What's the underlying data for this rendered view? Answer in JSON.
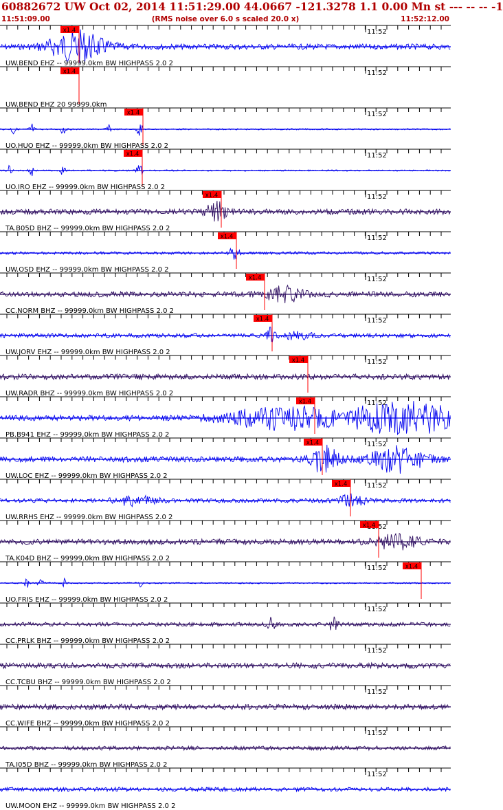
{
  "header": {
    "title": "60882672 UW Oct 02, 2014 11:51:29.00   44.0667 -121.3278  1.1 0.00 Mn st --- -- --  -1",
    "start_time": "11:51:09.00",
    "note": "(RMS noise over 6.0 s scaled 20.0 x)",
    "end_time": "11:52:12.00"
  },
  "colors": {
    "header_text": "#b00000",
    "trace_blue": "#0000ee",
    "trace_purple": "#2b0a5e",
    "pick_flag": "#ff0000",
    "axis": "#000000"
  },
  "minute_label": "11:52",
  "traces": [
    {
      "label": "UW.BEND EHZ -- 99999.0km BW  HIGHPASS  2.0  2",
      "pick": "x1.4",
      "color": "blue",
      "amp": 4,
      "events": [
        {
          "t": 0.17,
          "a": 22,
          "w": 0.06
        }
      ]
    },
    {
      "label": "UW.BEND EHZ 20 99999.0km",
      "pick": "x1.4",
      "color": "none",
      "amp": 0,
      "events": []
    },
    {
      "label": "UO.HUO EHZ -- 99999.0km BW  HIGHPASS  2.0  2",
      "pick": "x1.4",
      "color": "blue",
      "amp": 1,
      "events": [
        {
          "t": 0.03,
          "a": 9,
          "w": 0.005
        },
        {
          "t": 0.07,
          "a": 10,
          "w": 0.005
        },
        {
          "t": 0.14,
          "a": 9,
          "w": 0.005
        },
        {
          "t": 0.24,
          "a": 7,
          "w": 0.005
        },
        {
          "t": 0.31,
          "a": 10,
          "w": 0.006
        }
      ]
    },
    {
      "label": "UO.IRO EHZ -- 99999.0km BW  HIGHPASS  2.0  2",
      "pick": "x1.4",
      "color": "blue",
      "amp": 1,
      "events": [
        {
          "t": 0.02,
          "a": 9,
          "w": 0.005
        },
        {
          "t": 0.07,
          "a": 10,
          "w": 0.005
        },
        {
          "t": 0.14,
          "a": 8,
          "w": 0.005
        },
        {
          "t": 0.31,
          "a": 12,
          "w": 0.006
        }
      ]
    },
    {
      "label": "TA.B05D BHZ -- 99999.0km BW  HIGHPASS  2.0  2",
      "pick": "x1.4",
      "color": "purple",
      "amp": 4,
      "events": [
        {
          "t": 0.48,
          "a": 14,
          "w": 0.02
        }
      ]
    },
    {
      "label": "UW.OSD EHZ -- 99999.0km BW  HIGHPASS  2.0  2",
      "pick": "x1.4",
      "color": "blue",
      "amp": 2,
      "events": [
        {
          "t": 0.52,
          "a": 10,
          "w": 0.01
        }
      ]
    },
    {
      "label": "CC.NORM BHZ -- 99999.0km BW  HIGHPASS  2.0  2",
      "pick": "x1.4",
      "color": "purple",
      "amp": 4,
      "events": [
        {
          "t": 0.63,
          "a": 10,
          "w": 0.04
        }
      ]
    },
    {
      "label": "UW.JORV EHZ -- 99999.0km BW  HIGHPASS  2.0  2",
      "pick": "x1.4",
      "color": "blue",
      "amp": 3,
      "events": [
        {
          "t": 0.6,
          "a": 10,
          "w": 0.008
        },
        {
          "t": 0.66,
          "a": 5,
          "w": 0.03
        }
      ]
    },
    {
      "label": "UW.RADR BHZ -- 99999.0km BW  HIGHPASS  2.0  2",
      "pick": "x1.4",
      "color": "purple",
      "amp": 4,
      "events": []
    },
    {
      "label": "PB.B941 EHZ -- 99999.0km BW  HIGHPASS  2.0  2",
      "pick": "x1.4",
      "color": "blue",
      "amp": 4,
      "events": [
        {
          "t": 0.62,
          "a": 15,
          "w": 0.12
        },
        {
          "t": 0.9,
          "a": 22,
          "w": 0.14
        }
      ]
    },
    {
      "label": "UW.LOC EHZ -- 99999.0km BW  HIGHPASS  2.0  2",
      "pick": "x1.4",
      "color": "blue",
      "amp": 4,
      "events": [
        {
          "t": 0.72,
          "a": 20,
          "w": 0.03
        },
        {
          "t": 0.88,
          "a": 18,
          "w": 0.06
        }
      ]
    },
    {
      "label": "UW.RRHS EHZ -- 99999.0km BW  HIGHPASS  2.0  2",
      "pick": "x1.4",
      "color": "blue",
      "amp": 3,
      "events": [
        {
          "t": 0.3,
          "a": 6,
          "w": 0.05
        },
        {
          "t": 0.78,
          "a": 8,
          "w": 0.03
        }
      ]
    },
    {
      "label": "TA.K04D BHZ -- 99999.0km BW  HIGHPASS  2.0  2",
      "pick": "x1.4",
      "color": "purple",
      "amp": 4,
      "events": [
        {
          "t": 0.88,
          "a": 10,
          "w": 0.05
        }
      ]
    },
    {
      "label": "UO.FRIS EHZ -- 99999.0km BW  HIGHPASS  2.0  2",
      "pick": "x1.4",
      "color": "blue",
      "amp": 1,
      "events": [
        {
          "t": 0.06,
          "a": 8,
          "w": 0.005
        },
        {
          "t": 0.09,
          "a": 10,
          "w": 0.005
        },
        {
          "t": 0.14,
          "a": 9,
          "w": 0.005
        },
        {
          "t": 0.31,
          "a": 6,
          "w": 0.005
        }
      ]
    },
    {
      "label": "CC.PRLK BHZ -- 99999.0km BW  HIGHPASS  2.0  2",
      "pick": "",
      "color": "purple",
      "amp": 3,
      "events": [
        {
          "t": 0.6,
          "a": 12,
          "w": 0.008
        },
        {
          "t": 0.74,
          "a": 10,
          "w": 0.01
        }
      ]
    },
    {
      "label": "CC.TCBU BHZ -- 99999.0km BW  HIGHPASS  2.0  2",
      "pick": "",
      "color": "purple",
      "amp": 4,
      "events": []
    },
    {
      "label": "CC.WIFE BHZ -- 99999.0km BW  HIGHPASS  2.0  2",
      "pick": "",
      "color": "purple",
      "amp": 4,
      "events": []
    },
    {
      "label": "TA.I05D BHZ -- 99999.0km BW  HIGHPASS  2.0  2",
      "pick": "",
      "color": "purple",
      "amp": 3,
      "events": []
    },
    {
      "label": "UW.MOON EHZ -- 99999.0km BW  HIGHPASS  2.0  2",
      "pick": "",
      "color": "blue",
      "amp": 3,
      "events": []
    }
  ]
}
